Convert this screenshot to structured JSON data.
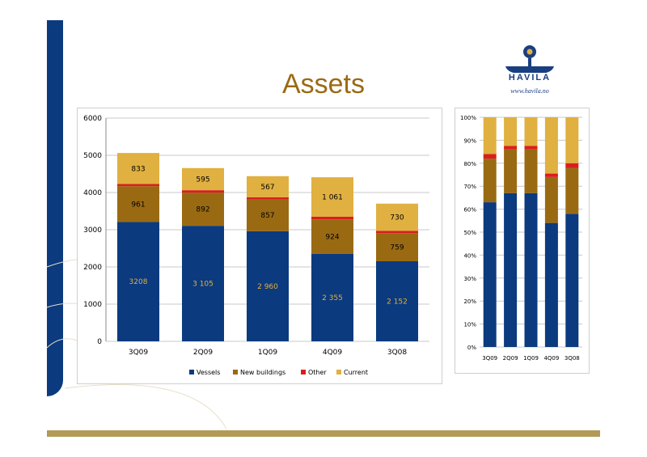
{
  "page": {
    "title": "Assets"
  },
  "logo": {
    "name": "HAVILA",
    "url": "www.havila.no"
  },
  "colors": {
    "vessels": "#0b3a7e",
    "new_buildings": "#9a6a12",
    "other": "#d91e1e",
    "current": "#e0b040"
  },
  "chart_data": [
    {
      "type": "bar",
      "stacked": true,
      "categories": [
        "3Q09",
        "2Q09",
        "1Q09",
        "4Q09",
        "3Q08"
      ],
      "series": [
        {
          "name": "Vessels",
          "values": [
            3208,
            3105,
            2960,
            2355,
            2152
          ],
          "labels": [
            "3208",
            "3 105",
            "2 960",
            "2 355",
            "2 152"
          ]
        },
        {
          "name": "New buildings",
          "values": [
            961,
            892,
            857,
            924,
            759
          ],
          "labels": [
            "961",
            "892",
            "857",
            "924",
            "759"
          ]
        },
        {
          "name": "Other",
          "values": [
            60,
            65,
            55,
            70,
            60
          ]
        },
        {
          "name": "Current",
          "values": [
            833,
            595,
            567,
            1061,
            730
          ],
          "labels": [
            "833",
            "595",
            "567",
            "1 061",
            "730"
          ]
        }
      ],
      "ylim": [
        0,
        6000
      ],
      "yticks": [
        0,
        1000,
        2000,
        3000,
        4000,
        5000,
        6000
      ],
      "legend": "bottom",
      "grid": true
    },
    {
      "type": "bar",
      "stacked": true,
      "percent": true,
      "categories": [
        "3Q09",
        "2Q09",
        "1Q09",
        "4Q09",
        "3Q08"
      ],
      "series": [
        {
          "name": "Vessels",
          "values": [
            63,
            67,
            67,
            54,
            58
          ]
        },
        {
          "name": "New buildings",
          "values": [
            19,
            19,
            19,
            20,
            20
          ]
        },
        {
          "name": "Other",
          "values": [
            2,
            1.5,
            1.5,
            1.5,
            2
          ]
        },
        {
          "name": "Current",
          "values": [
            16,
            12.5,
            12.5,
            24.5,
            20
          ]
        }
      ],
      "ylim": [
        0,
        100
      ],
      "yticks": [
        "0%",
        "10%",
        "20%",
        "30%",
        "40%",
        "50%",
        "60%",
        "70%",
        "80%",
        "90%",
        "100%"
      ],
      "grid": true
    }
  ]
}
